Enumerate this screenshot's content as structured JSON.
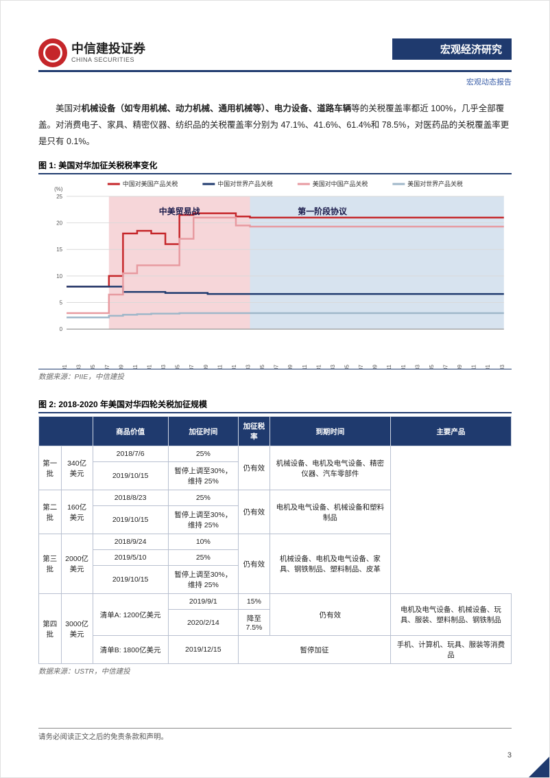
{
  "header": {
    "logo_cn": "中信建投证券",
    "logo_en": "CHINA SECURITIES",
    "title_right": "宏观经济研究",
    "subheader": "宏观动态报告"
  },
  "body_paragraph": {
    "prefix": "美国对",
    "bold_part": "机械设备（如专用机械、动力机械、通用机械等）、电力设备、道路车辆",
    "rest": "等的关税覆盖率都近 100%，几乎全部覆盖。对消费电子、家具、精密仪器、纺织品的关税覆盖率分别为 47.1%、41.6%、61.4%和 78.5%，对医药品的关税覆盖率更是只有 0.1%。"
  },
  "fig1": {
    "title": "图 1: 美国对华加征关税税率变化",
    "y_unit": "(%)",
    "y_ticks": [
      0,
      5,
      10,
      15,
      20,
      25
    ],
    "x_ticks": [
      "2018-01",
      "2018-03",
      "2018-05",
      "2018-07",
      "2018-09",
      "2018-11",
      "2019-01",
      "2019-03",
      "2019-05",
      "2019-07",
      "2019-09",
      "2019-11",
      "2020-01",
      "2020-03",
      "2020-05",
      "2020-07",
      "2020-09",
      "2020-11",
      "2021-01",
      "2021-03",
      "2021-05",
      "2021-07",
      "2021-09",
      "2021-11",
      "2022-01",
      "2022-03",
      "2022-05",
      "2022-07",
      "2022-09",
      "2022-11",
      "2023-01",
      "2023-03"
    ],
    "legend": [
      {
        "label": "中国对美国产品关税",
        "color": "#c5262a",
        "width": 2.5
      },
      {
        "label": "中国对世界产品关税",
        "color": "#1f3a6e",
        "width": 2.5
      },
      {
        "label": "美国对中国产品关税",
        "color": "#e79aa0",
        "width": 2.5
      },
      {
        "label": "美国对世界产品关税",
        "color": "#9fb7c9",
        "width": 2.5
      }
    ],
    "annot1": "中美贸易战",
    "annot2": "第一阶段协议",
    "shade1": {
      "start": 3,
      "end": 13,
      "color": "#f6d6d9"
    },
    "shade2": {
      "start": 13,
      "end": 31,
      "color": "#d7e3ef"
    },
    "series": {
      "cn_us": [
        8,
        8,
        8,
        10,
        18,
        18.5,
        18,
        16,
        21.5,
        21.8,
        21.8,
        21.8,
        21.2,
        21,
        21,
        21,
        21,
        21,
        21,
        21,
        21,
        21,
        21,
        21,
        21,
        21,
        21,
        21,
        21,
        21,
        21,
        21
      ],
      "cn_world": [
        8,
        8,
        8,
        8,
        7,
        7,
        7,
        6.8,
        6.8,
        6.8,
        6.6,
        6.6,
        6.6,
        6.6,
        6.6,
        6.6,
        6.6,
        6.6,
        6.6,
        6.6,
        6.6,
        6.6,
        6.6,
        6.6,
        6.6,
        6.6,
        6.6,
        6.6,
        6.6,
        6.6,
        6.6,
        6.6
      ],
      "us_cn": [
        3,
        3,
        3,
        6.5,
        10.5,
        12,
        12,
        12,
        17,
        21,
        21,
        21,
        19.5,
        19.3,
        19.3,
        19.3,
        19.3,
        19.3,
        19.3,
        19.3,
        19.3,
        19.3,
        19.3,
        19.3,
        19.3,
        19.3,
        19.3,
        19.3,
        19.3,
        19.3,
        19.3,
        19.3
      ],
      "us_world": [
        2.2,
        2.2,
        2.2,
        2.5,
        2.7,
        2.8,
        2.9,
        2.9,
        3,
        3,
        3,
        3,
        3,
        3,
        3,
        3,
        3,
        3,
        3,
        3,
        3,
        3,
        3,
        3,
        3,
        3,
        3,
        3,
        3,
        3,
        3,
        3
      ]
    },
    "background": "#ffffff",
    "grid_color": "#d9d9d9",
    "source": "数据来源：PIIE，中信建投"
  },
  "fig2": {
    "title": "图 2: 2018-2020 年美国对华四轮关税加征规模",
    "columns": [
      "",
      "商品价值",
      "加征时间",
      "加征税率",
      "到期时间",
      "主要产品"
    ],
    "rows": [
      {
        "batch": "第一批",
        "value": "340亿美元",
        "sub": [
          {
            "date": "2018/7/6",
            "rate": "25%"
          },
          {
            "date": "2019/10/15",
            "rate": "暂停上调至30%，维持 25%"
          }
        ],
        "expire": "仍有效",
        "products": "机械设备、电机及电气设备、精密仪器、汽车零部件"
      },
      {
        "batch": "第二批",
        "value": "160亿美元",
        "sub": [
          {
            "date": "2018/8/23",
            "rate": "25%"
          },
          {
            "date": "2019/10/15",
            "rate": "暂停上调至30%，维持 25%"
          }
        ],
        "expire": "仍有效",
        "products": "电机及电气设备、机械设备和塑料制品"
      },
      {
        "batch": "第三批",
        "value": "2000亿美元",
        "sub": [
          {
            "date": "2018/9/24",
            "rate": "10%"
          },
          {
            "date": "2019/5/10",
            "rate": "25%"
          },
          {
            "date": "2019/10/15",
            "rate": "暂停上调至30%，维持 25%"
          }
        ],
        "expire": "仍有效",
        "products": "机械设备、电机及电气设备、家具、钢铁制品、塑料制品、皮革"
      },
      {
        "batch": "第四批",
        "value": "3000亿美元",
        "lists": [
          {
            "list": "清单A: 1200亿美元",
            "sub": [
              {
                "date": "2019/9/1",
                "rate": "15%"
              },
              {
                "date": "2020/2/14",
                "rate": "降至 7.5%"
              }
            ],
            "expire": "仍有效",
            "products": "电机及电气设备、机械设备、玩具、服装、塑料制品、钢铁制品"
          },
          {
            "list": "清单B: 1800亿美元",
            "sub": [
              {
                "date": "2019/12/15",
                "rate": "暂停加征",
                "span": true
              }
            ],
            "expire": "",
            "products": "手机、计算机、玩具、服装等消费品"
          }
        ]
      }
    ],
    "source": "数据来源：USTR，中信建投"
  },
  "footer": "请务必阅读正文之后的免责条款和声明。",
  "page_number": "3"
}
